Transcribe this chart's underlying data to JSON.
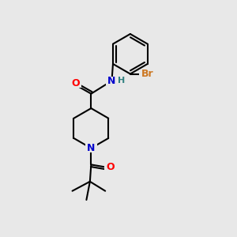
{
  "background_color": "#e8e8e8",
  "bond_color": "#000000",
  "bond_width": 1.5,
  "atom_colors": {
    "O": "#ff0000",
    "N": "#0000cc",
    "Br": "#cc7722",
    "H": "#2f8080",
    "C": "#000000"
  },
  "figsize": [
    3.0,
    3.0
  ],
  "dpi": 100
}
